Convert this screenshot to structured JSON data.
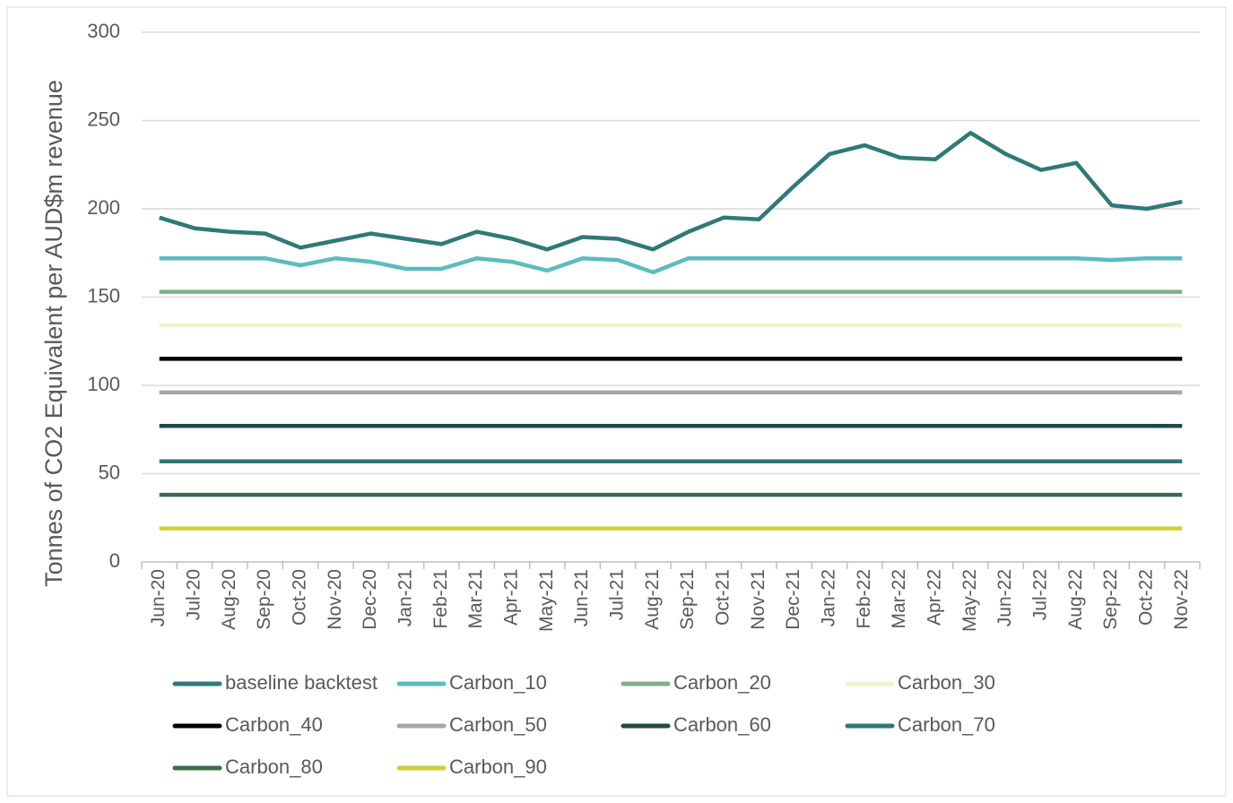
{
  "chart_data": {
    "type": "line",
    "y_label": "Tonnes of CO2 Equivalent per AUD$m revenue",
    "categories": [
      "Jun-20",
      "Jul-20",
      "Aug-20",
      "Sep-20",
      "Oct-20",
      "Nov-20",
      "Dec-20",
      "Jan-21",
      "Feb-21",
      "Mar-21",
      "Apr-21",
      "May-21",
      "Jun-21",
      "Jul-21",
      "Aug-21",
      "Sep-21",
      "Oct-21",
      "Nov-21",
      "Dec-21",
      "Jan-22",
      "Feb-22",
      "Mar-22",
      "Apr-22",
      "May-22",
      "Jun-22",
      "Jul-22",
      "Aug-22",
      "Sep-22",
      "Oct-22",
      "Nov-22"
    ],
    "ylim": [
      0,
      300
    ],
    "yticks": [
      0,
      50,
      100,
      150,
      200,
      250,
      300
    ],
    "grid": true,
    "legend": "bottom",
    "series": [
      {
        "name": "baseline backtest",
        "color": "#2e7a78",
        "values": [
          195,
          189,
          187,
          186,
          178,
          182,
          186,
          183,
          180,
          187,
          183,
          177,
          184,
          183,
          177,
          187,
          195,
          194,
          213,
          231,
          236,
          229,
          228,
          243,
          231,
          222,
          226,
          202,
          200,
          204
        ]
      },
      {
        "name": "Carbon_10",
        "color": "#5bbcbc",
        "values": [
          172,
          172,
          172,
          172,
          168,
          172,
          170,
          166,
          166,
          172,
          170,
          165,
          172,
          171,
          164,
          172,
          172,
          172,
          172,
          172,
          172,
          172,
          172,
          172,
          172,
          172,
          172,
          171,
          172,
          172
        ]
      },
      {
        "name": "Carbon_20",
        "color": "#7fae8c",
        "values": [
          153,
          153,
          153,
          153,
          153,
          153,
          153,
          153,
          153,
          153,
          153,
          153,
          153,
          153,
          153,
          153,
          153,
          153,
          153,
          153,
          153,
          153,
          153,
          153,
          153,
          153,
          153,
          153,
          153,
          153
        ]
      },
      {
        "name": "Carbon_30",
        "color": "#f2f2cc",
        "values": [
          134,
          134,
          134,
          134,
          134,
          134,
          134,
          134,
          134,
          134,
          134,
          134,
          134,
          134,
          134,
          134,
          134,
          134,
          134,
          134,
          134,
          134,
          134,
          134,
          134,
          134,
          134,
          134,
          134,
          134
        ]
      },
      {
        "name": "Carbon_40",
        "color": "#000000",
        "values": [
          115,
          115,
          115,
          115,
          115,
          115,
          115,
          115,
          115,
          115,
          115,
          115,
          115,
          115,
          115,
          115,
          115,
          115,
          115,
          115,
          115,
          115,
          115,
          115,
          115,
          115,
          115,
          115,
          115,
          115
        ]
      },
      {
        "name": "Carbon_50",
        "color": "#a6a6a6",
        "values": [
          96,
          96,
          96,
          96,
          96,
          96,
          96,
          96,
          96,
          96,
          96,
          96,
          96,
          96,
          96,
          96,
          96,
          96,
          96,
          96,
          96,
          96,
          96,
          96,
          96,
          96,
          96,
          96,
          96,
          96
        ]
      },
      {
        "name": "Carbon_60",
        "color": "#1e4a44",
        "values": [
          77,
          77,
          77,
          77,
          77,
          77,
          77,
          77,
          77,
          77,
          77,
          77,
          77,
          77,
          77,
          77,
          77,
          77,
          77,
          77,
          77,
          77,
          77,
          77,
          77,
          77,
          77,
          77,
          77,
          77
        ]
      },
      {
        "name": "Carbon_70",
        "color": "#2f7572",
        "values": [
          57,
          57,
          57,
          57,
          57,
          57,
          57,
          57,
          57,
          57,
          57,
          57,
          57,
          57,
          57,
          57,
          57,
          57,
          57,
          57,
          57,
          57,
          57,
          57,
          57,
          57,
          57,
          57,
          57,
          57
        ]
      },
      {
        "name": "Carbon_80",
        "color": "#3e6b48",
        "values": [
          38,
          38,
          38,
          38,
          38,
          38,
          38,
          38,
          38,
          38,
          38,
          38,
          38,
          38,
          38,
          38,
          38,
          38,
          38,
          38,
          38,
          38,
          38,
          38,
          38,
          38,
          38,
          38,
          38,
          38
        ]
      },
      {
        "name": "Carbon_90",
        "color": "#cfcf3a",
        "values": [
          19,
          19,
          19,
          19,
          19,
          19,
          19,
          19,
          19,
          19,
          19,
          19,
          19,
          19,
          19,
          19,
          19,
          19,
          19,
          19,
          19,
          19,
          19,
          19,
          19,
          19,
          19,
          19,
          19,
          19
        ]
      }
    ]
  }
}
